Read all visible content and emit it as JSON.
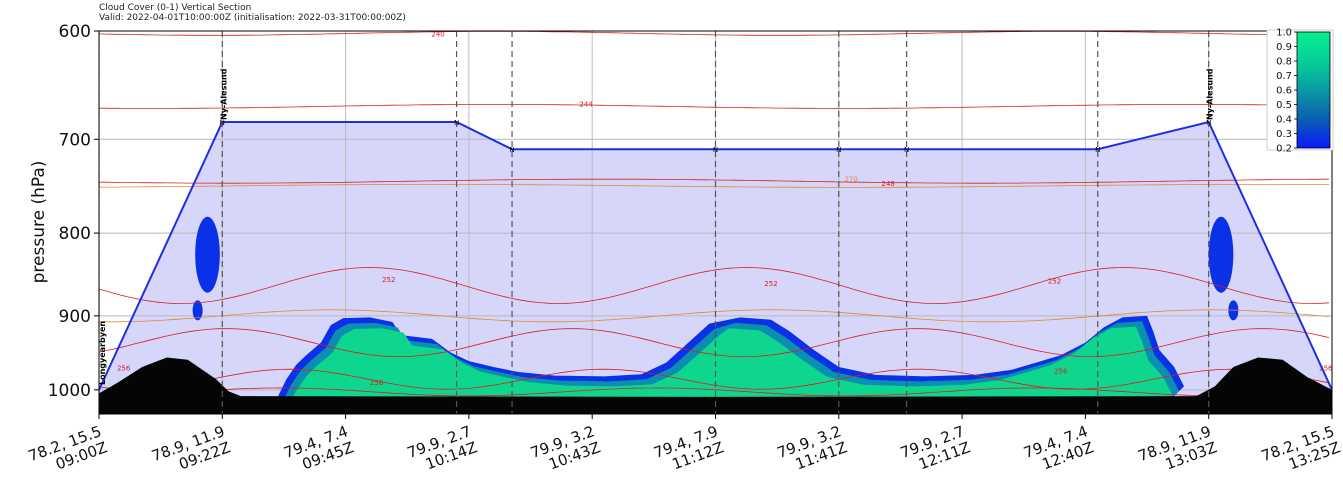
{
  "chart_data": {
    "type": "area",
    "title": "Cloud Cover (0-1) Vertical Section",
    "subtitle": "Valid: 2022-04-01T10:00:00Z (initialisation: 2022-03-31T00:00:00Z)",
    "ylabel": "pressure (hPa)",
    "xlabel": "",
    "ylim": [
      1035,
      600
    ],
    "y_scale": "log",
    "y_ticks": [
      600,
      700,
      800,
      900,
      1000
    ],
    "grid": true,
    "x_ticks": [
      {
        "coord": "78.2, 15.5",
        "time": "09:00Z"
      },
      {
        "coord": "78.9, 11.9",
        "time": "09:22Z"
      },
      {
        "coord": "79.4, 7.4",
        "time": "09:45Z"
      },
      {
        "coord": "79.9, 2.7",
        "time": "10:14Z"
      },
      {
        "coord": "79.9, 3.2",
        "time": "10:43Z"
      },
      {
        "coord": "79.4, 7.9",
        "time": "11:12Z"
      },
      {
        "coord": "79.9, 3.2",
        "time": "11:41Z"
      },
      {
        "coord": "79.9, 2.7",
        "time": "12:11Z"
      },
      {
        "coord": "79.4, 7.4",
        "time": "12:40Z"
      },
      {
        "coord": "78.9, 11.9",
        "time": "13:03Z"
      },
      {
        "coord": "78.2, 15.5",
        "time": "13:25Z"
      }
    ],
    "waypoint_markers": [
      {
        "tick_index": 0,
        "label": "Longyearbyen"
      },
      {
        "tick_index": 1,
        "label": "Ny-Alesund"
      },
      {
        "tick_index": 9,
        "label": "Ny-Alesund"
      }
    ],
    "flight_track_pressure_hPa": [
      1000,
      683,
      683,
      710,
      710,
      710,
      710,
      710,
      683,
      1000
    ],
    "flight_track_x_index": [
      0,
      1,
      2.9,
      3.35,
      5,
      6,
      6.55,
      8.1,
      9,
      10
    ],
    "isotherm_labels": [
      "240",
      "244",
      "248",
      "252",
      "252",
      "252",
      "256",
      "256",
      "256",
      "256",
      "270"
    ],
    "colorbar": {
      "min": 0.2,
      "max": 1.0,
      "ticks": [
        "1.0",
        "0.9",
        "0.8",
        "0.7",
        "0.6",
        "0.5",
        "0.4",
        "0.3",
        "0.2"
      ],
      "colors": [
        "#0a18ff",
        "#0b41c8",
        "#0c64ad",
        "#0a87a6",
        "#07a8a0",
        "#05c29a",
        "#04d796",
        "#05e693",
        "#06ef90"
      ]
    },
    "colors": {
      "flight_area": "#d6d6fb",
      "flight_line": "#1f2fe0",
      "cloud_core": "#0fd68f",
      "cloud_edge": "#0a30e8",
      "terrain": "#050505",
      "isotherm_red": "#d62020",
      "isotherm_orange": "#e08a30"
    }
  }
}
